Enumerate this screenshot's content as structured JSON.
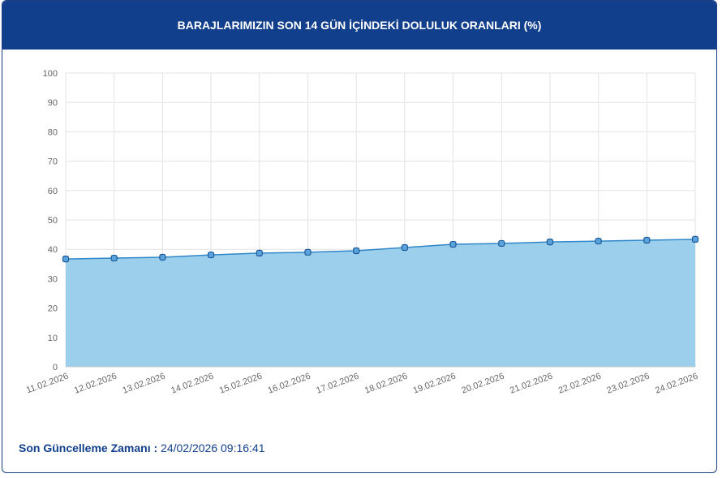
{
  "chart_data": {
    "type": "area",
    "title": "BARAJLARIMIZIN SON 14 GÜN İÇİNDEKİ DOLULUK ORANLARI (%)",
    "categories": [
      "11.02.2026",
      "12.02.2026",
      "13.02.2026",
      "14.02.2026",
      "15.02.2026",
      "16.02.2026",
      "17.02.2026",
      "18.02.2026",
      "19.02.2026",
      "20.02.2026",
      "21.02.2026",
      "22.02.2026",
      "23.02.2026",
      "24.02.2026"
    ],
    "values": [
      36.7,
      37.0,
      37.3,
      38.1,
      38.7,
      39.0,
      39.5,
      40.6,
      41.7,
      42.0,
      42.5,
      42.8,
      43.1,
      43.4
    ],
    "color": "#2f86c8",
    "fill": "#9bcfec",
    "ylim": [
      0,
      100
    ],
    "yticks": [
      0,
      10,
      20,
      30,
      40,
      50,
      60,
      70,
      80,
      90,
      100
    ],
    "grid": true
  },
  "footer": {
    "label": "Son Güncelleme Zamanı :",
    "value": "24/02/2026 09:16:41"
  }
}
